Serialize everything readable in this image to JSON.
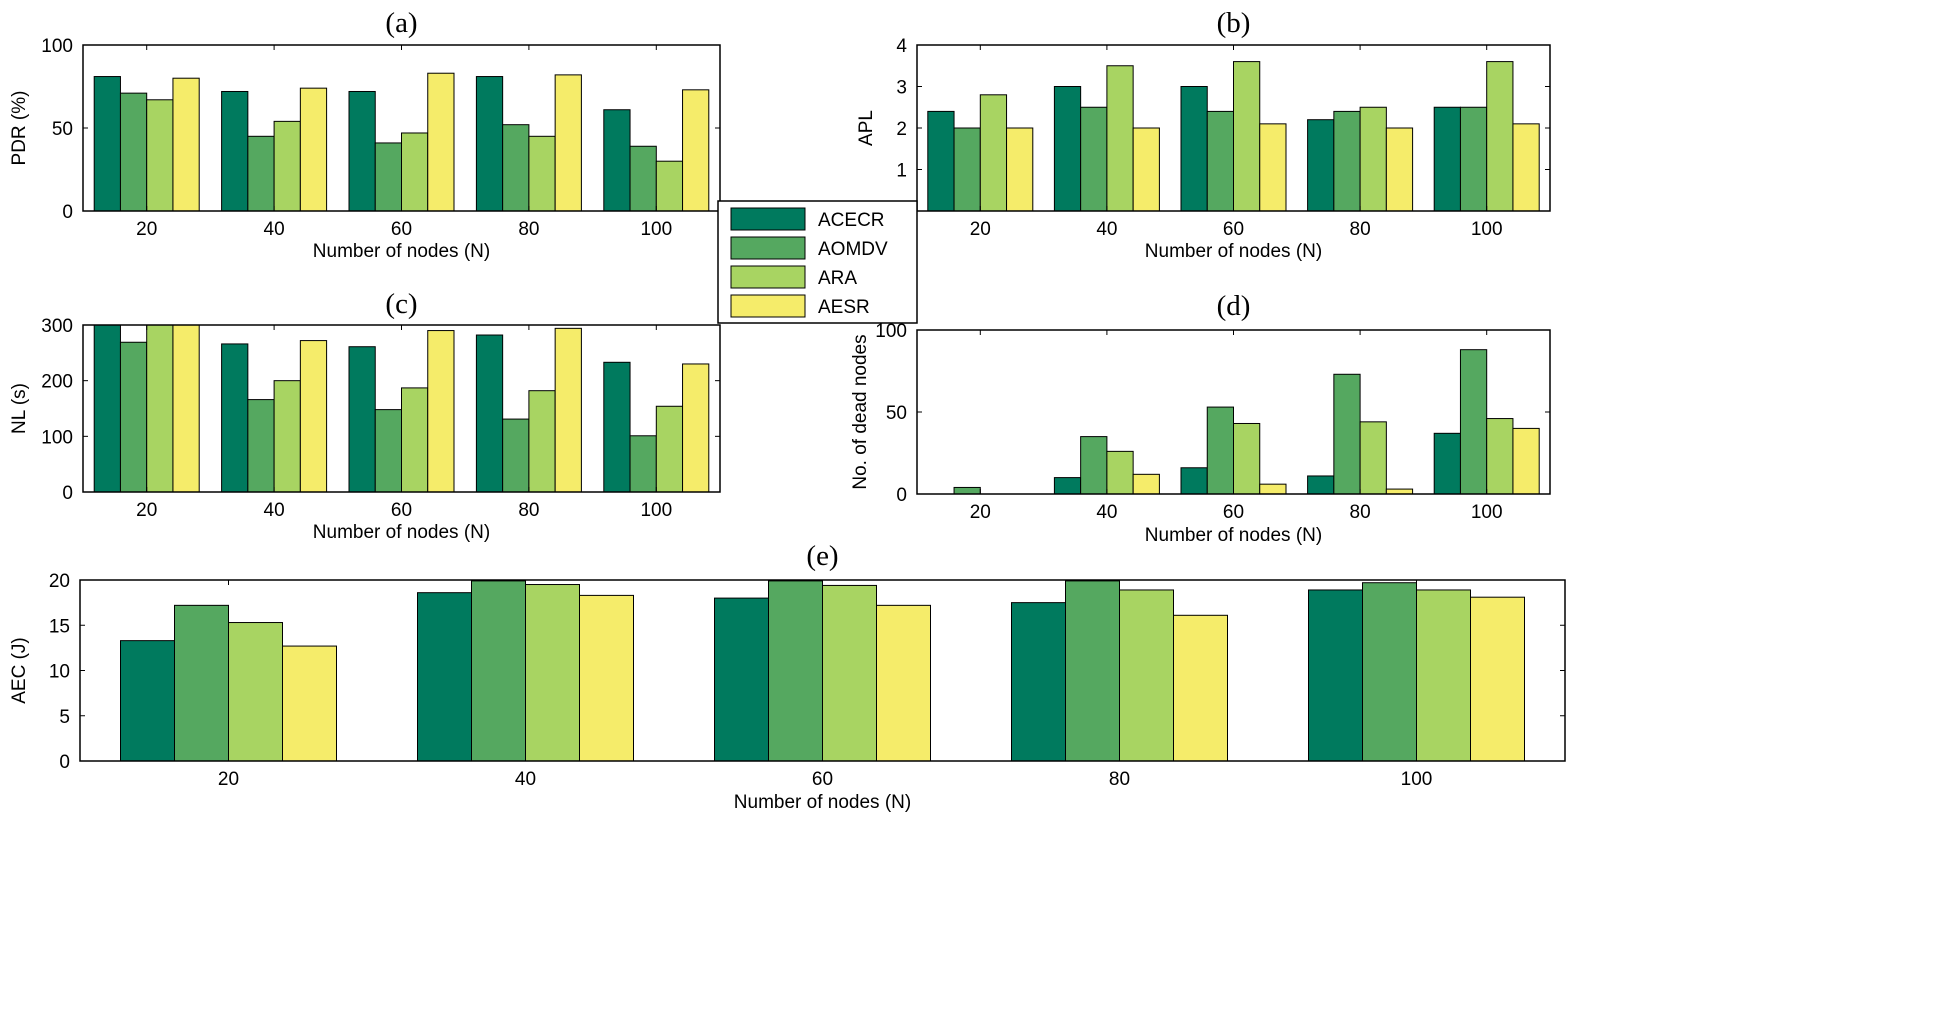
{
  "legend": {
    "entries": [
      {
        "name": "ACECR",
        "color": "#007a5e"
      },
      {
        "name": "AOMDV",
        "color": "#55a860"
      },
      {
        "name": "ARA",
        "color": "#a8d462"
      },
      {
        "name": "AESR",
        "color": "#f5ec6a"
      }
    ]
  },
  "chart_data": [
    {
      "id": "a",
      "type": "bar",
      "title": "(a)",
      "xlabel": "Number of nodes (N)",
      "ylabel": "PDR (%)",
      "categories": [
        "20",
        "40",
        "60",
        "80",
        "100"
      ],
      "ylim": [
        0,
        100
      ],
      "yticks": [
        "0",
        "50",
        "100"
      ],
      "series": [
        {
          "name": "ACECR",
          "values": [
            81,
            72,
            72,
            81,
            61
          ]
        },
        {
          "name": "AOMDV",
          "values": [
            71,
            45,
            41,
            52,
            39
          ]
        },
        {
          "name": "ARA",
          "values": [
            67,
            54,
            47,
            45,
            30
          ]
        },
        {
          "name": "AESR",
          "values": [
            80,
            74,
            83,
            82,
            73
          ]
        }
      ]
    },
    {
      "id": "b",
      "type": "bar",
      "title": "(b)",
      "xlabel": "Number of nodes (N)",
      "ylabel": "APL",
      "categories": [
        "20",
        "40",
        "60",
        "80",
        "100"
      ],
      "ylim": [
        0,
        4
      ],
      "yticks": [
        "1",
        "2",
        "3",
        "4"
      ],
      "series": [
        {
          "name": "ACECR",
          "values": [
            2.4,
            3.0,
            3.0,
            2.2,
            2.5
          ]
        },
        {
          "name": "AOMDV",
          "values": [
            2.0,
            2.5,
            2.4,
            2.4,
            2.5
          ]
        },
        {
          "name": "ARA",
          "values": [
            2.8,
            3.5,
            3.6,
            2.5,
            3.6
          ]
        },
        {
          "name": "AESR",
          "values": [
            2.0,
            2.0,
            2.1,
            2.0,
            2.1
          ]
        }
      ]
    },
    {
      "id": "c",
      "type": "bar",
      "title": "(c)",
      "xlabel": "Number of nodes (N)",
      "ylabel": "NL (s)",
      "categories": [
        "20",
        "40",
        "60",
        "80",
        "100"
      ],
      "ylim": [
        0,
        300
      ],
      "yticks": [
        "0",
        "100",
        "200",
        "300"
      ],
      "series": [
        {
          "name": "ACECR",
          "values": [
            300,
            266,
            261,
            282,
            233
          ]
        },
        {
          "name": "AOMDV",
          "values": [
            269,
            166,
            148,
            131,
            101
          ]
        },
        {
          "name": "ARA",
          "values": [
            300,
            200,
            187,
            182,
            154
          ]
        },
        {
          "name": "AESR",
          "values": [
            300,
            272,
            290,
            294,
            230
          ]
        }
      ]
    },
    {
      "id": "d",
      "type": "bar",
      "title": "(d)",
      "xlabel": "Number of nodes (N)",
      "ylabel": "No. of dead nodes",
      "categories": [
        "20",
        "40",
        "60",
        "80",
        "100"
      ],
      "ylim": [
        0,
        100
      ],
      "yticks": [
        "0",
        "50",
        "100"
      ],
      "series": [
        {
          "name": "ACECR",
          "values": [
            0,
            10,
            16,
            11,
            37
          ]
        },
        {
          "name": "AOMDV",
          "values": [
            4,
            35,
            53,
            73,
            88
          ]
        },
        {
          "name": "ARA",
          "values": [
            0,
            26,
            43,
            44,
            46
          ]
        },
        {
          "name": "AESR",
          "values": [
            0,
            12,
            6,
            3,
            40
          ]
        }
      ]
    },
    {
      "id": "e",
      "type": "bar",
      "title": "(e)",
      "xlabel": "Number of nodes (N)",
      "ylabel": "AEC (J)",
      "categories": [
        "20",
        "40",
        "60",
        "80",
        "100"
      ],
      "ylim": [
        0,
        20
      ],
      "yticks": [
        "0",
        "5",
        "10",
        "15",
        "20"
      ],
      "series": [
        {
          "name": "ACECR",
          "values": [
            13.3,
            18.6,
            18.0,
            17.5,
            18.9
          ]
        },
        {
          "name": "AOMDV",
          "values": [
            17.2,
            19.9,
            19.9,
            19.9,
            19.7
          ]
        },
        {
          "name": "ARA",
          "values": [
            15.3,
            19.5,
            19.4,
            18.9,
            18.9
          ]
        },
        {
          "name": "AESR",
          "values": [
            12.7,
            18.3,
            17.2,
            16.1,
            18.1
          ]
        }
      ]
    }
  ]
}
